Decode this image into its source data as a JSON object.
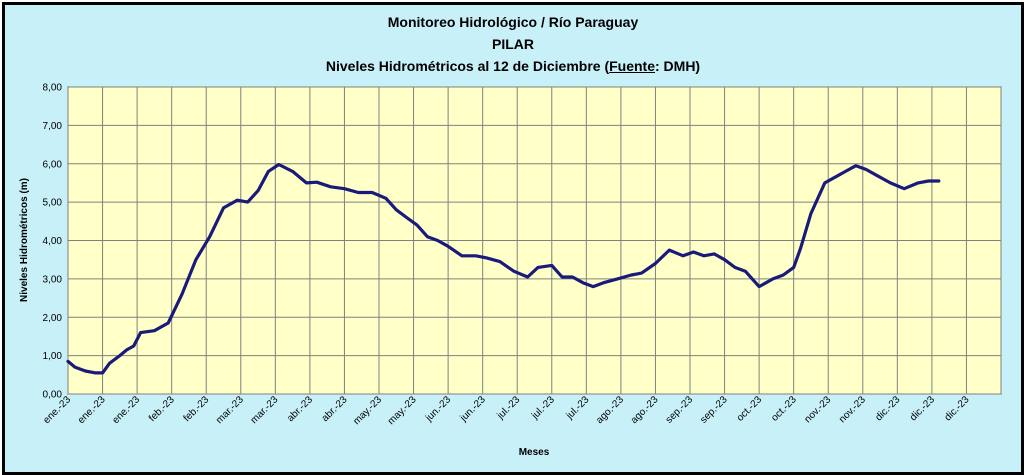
{
  "chart_data": {
    "type": "line",
    "title_lines": [
      "Monitoreo Hidrológico / Río Paraguay",
      "PILAR"
    ],
    "subtitle": {
      "prefix": "Niveles Hidrométricos al 12 de Diciembre (",
      "underlined": "Fuente",
      "suffix": ": DMH)"
    },
    "xlabel": "Meses",
    "ylabel": "Niveles Hidrométricos (m)",
    "ylim": [
      0,
      8
    ],
    "yticks": [
      "0,00",
      "1,00",
      "2,00",
      "3,00",
      "4,00",
      "5,00",
      "6,00",
      "7,00",
      "8,00"
    ],
    "xticks": [
      "ene.-23",
      "ene.-23",
      "ene.-23",
      "feb.-23",
      "feb.-23",
      "mar.-23",
      "mar.-23",
      "abr.-23",
      "abr.-23",
      "may.-23",
      "may.-23",
      "jun.-23",
      "jun.-23",
      "jul.-23",
      "jul.-23",
      "jul.-23",
      "ago.-23",
      "ago.-23",
      "sep.-23",
      "sep.-23",
      "oct.-23",
      "oct.-23",
      "nov.-23",
      "nov.-23",
      "dic.-23",
      "dic.-23",
      "dic.-23"
    ],
    "grid": true,
    "line_color": "#1a1a7a",
    "plot_background": "#ffffc8",
    "frame_background": "#c7f0f8",
    "series": [
      {
        "x": [
          0,
          0.2,
          0.5,
          0.8,
          1.0,
          1.2,
          1.5,
          1.7,
          1.9,
          2.1,
          2.5,
          2.9,
          3.3,
          3.7,
          4.1,
          4.5,
          4.9,
          5.2,
          5.5,
          5.8,
          6.1,
          6.5,
          6.9,
          7.2,
          7.6,
          8.0,
          8.4,
          8.8,
          9.2,
          9.5,
          9.8,
          10.1,
          10.4,
          10.7,
          11.0,
          11.4,
          11.8,
          12.1,
          12.5,
          12.9,
          13.3,
          13.6,
          14.0,
          14.3,
          14.6,
          14.9,
          15.2,
          15.5,
          15.9,
          16.3,
          16.6,
          17.0,
          17.4,
          17.8,
          18.1,
          18.4,
          18.7,
          19.0,
          19.3,
          19.6,
          20.0,
          20.4,
          20.7,
          21.0,
          21.2,
          21.5,
          21.9,
          22.2,
          22.5,
          22.8,
          23.1,
          23.4,
          23.8,
          24.2,
          24.6,
          24.9,
          25.2
        ],
        "y": [
          0.85,
          0.7,
          0.6,
          0.55,
          0.55,
          0.8,
          1.0,
          1.15,
          1.25,
          1.6,
          1.65,
          1.85,
          2.6,
          3.5,
          4.1,
          4.85,
          5.05,
          5.0,
          5.3,
          5.8,
          5.98,
          5.8,
          5.5,
          5.52,
          5.4,
          5.35,
          5.25,
          5.25,
          5.1,
          4.8,
          4.6,
          4.4,
          4.1,
          4.0,
          3.85,
          3.6,
          3.6,
          3.55,
          3.45,
          3.2,
          3.05,
          3.3,
          3.35,
          3.05,
          3.05,
          2.9,
          2.8,
          2.9,
          3.0,
          3.1,
          3.15,
          3.4,
          3.75,
          3.6,
          3.7,
          3.6,
          3.65,
          3.5,
          3.3,
          3.2,
          2.8,
          3.0,
          3.1,
          3.3,
          3.8,
          4.7,
          5.5,
          5.65,
          5.8,
          5.95,
          5.85,
          5.7,
          5.5,
          5.35,
          5.5,
          5.55,
          5.55
        ]
      }
    ]
  }
}
